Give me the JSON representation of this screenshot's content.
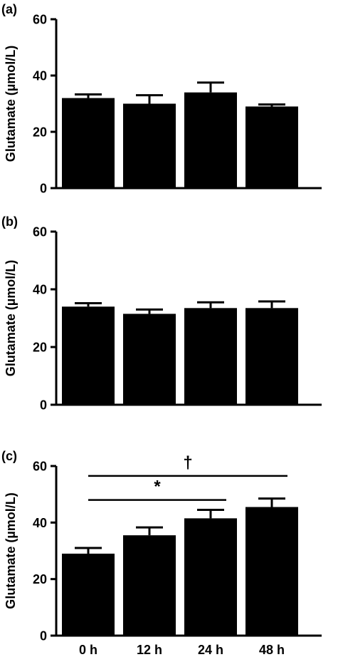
{
  "chart_data": [
    {
      "type": "bar",
      "panel_label": "(a)",
      "ylabel": "Glutamate (µmol/L)",
      "ylim": [
        0,
        60
      ],
      "yticks": [
        "0",
        "20",
        "40",
        "60"
      ],
      "categories": [
        "0 h",
        "12 h",
        "24 h",
        "48 h"
      ],
      "show_category_labels": false,
      "values": [
        32,
        30,
        34,
        29
      ],
      "errors": [
        1.3,
        3,
        3.5,
        0.7
      ],
      "colors": {
        "bar": "#000000"
      },
      "annotations": []
    },
    {
      "type": "bar",
      "panel_label": "(b)",
      "ylabel": "Glutamate (µmol/L)",
      "ylim": [
        0,
        60
      ],
      "yticks": [
        "0",
        "20",
        "40",
        "60"
      ],
      "categories": [
        "0 h",
        "12 h",
        "24 h",
        "48 h"
      ],
      "show_category_labels": false,
      "values": [
        34,
        31.5,
        33.5,
        33.5
      ],
      "errors": [
        1.2,
        1.5,
        2,
        2.3
      ],
      "colors": {
        "bar": "#000000"
      },
      "annotations": []
    },
    {
      "type": "bar",
      "panel_label": "(c)",
      "ylabel": "Glutamate (µmol/L)",
      "ylim": [
        0,
        60
      ],
      "yticks": [
        "0",
        "20",
        "40",
        "60"
      ],
      "categories": [
        "0 h",
        "12 h",
        "24 h",
        "48 h"
      ],
      "show_category_labels": true,
      "values": [
        29,
        35.5,
        41.5,
        45.5
      ],
      "errors": [
        2,
        2.8,
        3,
        3
      ],
      "colors": {
        "bar": "#000000"
      },
      "annotations": [
        {
          "label": "†",
          "from": 0,
          "to": 3,
          "y": 56.5
        },
        {
          "label": "*",
          "from": 0,
          "to": 2,
          "y": 48
        }
      ]
    }
  ]
}
